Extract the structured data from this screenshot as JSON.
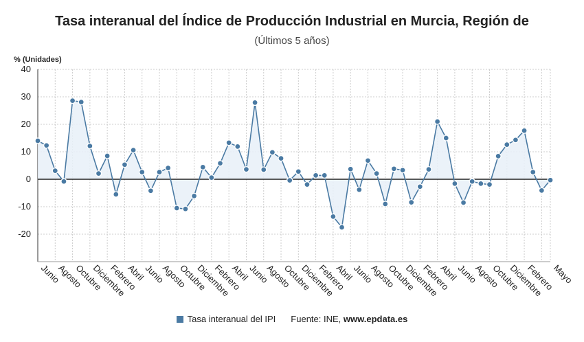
{
  "chart_data": {
    "type": "line",
    "title": "Tasa interanual del Índice de Producción Industrial en Murcia, Región de",
    "subtitle": "(Últimos 5 años)",
    "ylabel": "% (Unidades)",
    "ylim": [
      -30,
      40
    ],
    "yticks": [
      -20,
      -10,
      0,
      10,
      20,
      30,
      40
    ],
    "grid": true,
    "legend_position": "bottom",
    "x_labels": [
      "Junio",
      "Agosto",
      "Octubre",
      "Diciembre",
      "Febrero",
      "Abril",
      "Junio",
      "Agosto",
      "Octubre",
      "Diciembre",
      "Febrero",
      "Abril",
      "Junio",
      "Agosto",
      "Octubre",
      "Diciembre",
      "Febrero",
      "Abril",
      "Junio",
      "Agosto",
      "Octubre",
      "Diciembre",
      "Febrero",
      "Abril",
      "Junio",
      "Agosto",
      "Octubre",
      "Diciembre",
      "Febrero",
      "Mayo"
    ],
    "series": [
      {
        "name": "Tasa interanual del IPI",
        "color": "#4a7aa3",
        "values": [
          14,
          12.3,
          3.1,
          -0.8,
          28.6,
          28.1,
          12.1,
          2.1,
          8.5,
          -5.5,
          5.3,
          10.6,
          2.6,
          -4.2,
          2.6,
          4.1,
          -10.5,
          -10.8,
          -6.1,
          4.4,
          0.6,
          5.8,
          13.3,
          11.9,
          3.6,
          27.9,
          3.5,
          9.8,
          7.6,
          -0.4,
          2.8,
          -1.9,
          1.4,
          1.4,
          -13.6,
          -17.5,
          3.7,
          -3.8,
          6.8,
          2.1,
          -9.0,
          3.8,
          3.3,
          -8.4,
          -2.7,
          3.6,
          21.0,
          15.0,
          -1.6,
          -8.5,
          -0.8,
          -1.6,
          -1.9,
          8.4,
          12.6,
          14.3,
          17.7,
          2.6,
          -4.1,
          -0.3
        ]
      }
    ]
  },
  "legend": {
    "label": "Tasa interanual del IPI",
    "source_prefix": "Fuente: INE, ",
    "source_site": "www.epdata.es"
  }
}
